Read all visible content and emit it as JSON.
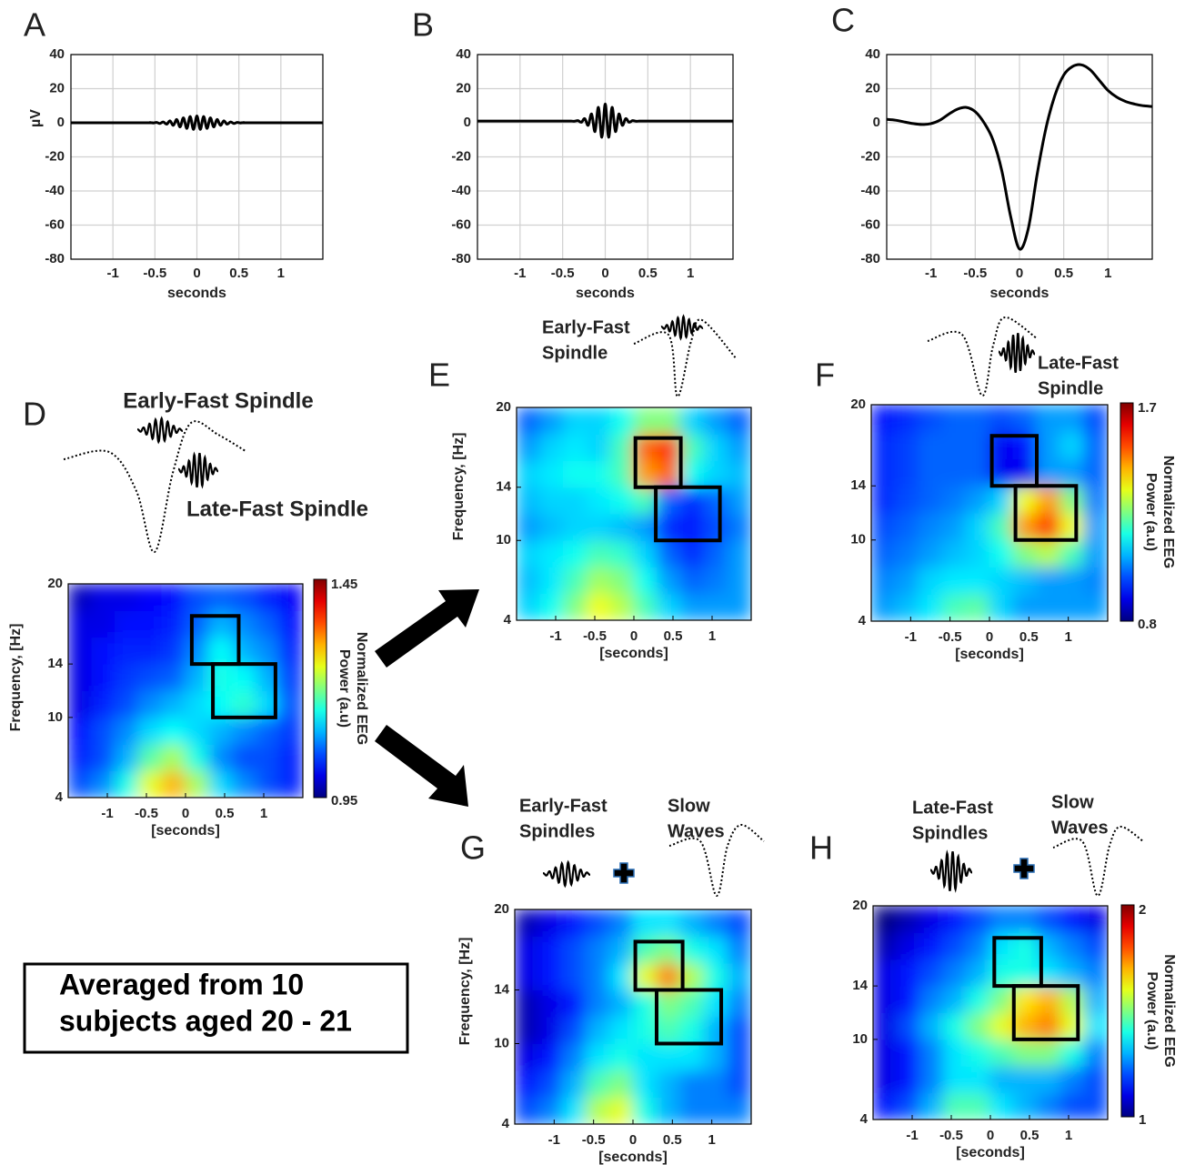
{
  "caption": [
    "Averaged from 10",
    "subjects aged 20 - 21"
  ],
  "chart_data": [
    {
      "type": "line",
      "label": "A",
      "ylabel": "µV",
      "xlabel": "seconds",
      "color": "#000000",
      "x": [
        -1.5,
        -0.6,
        -0.56,
        -0.52,
        -0.48,
        -0.44,
        -0.4,
        -0.36,
        -0.32,
        -0.28,
        -0.24,
        -0.2,
        -0.16,
        -0.12,
        -0.08,
        -0.04,
        0,
        0.04,
        0.08,
        0.12,
        0.16,
        0.2,
        0.24,
        0.28,
        0.32,
        0.36,
        0.4,
        0.44,
        0.48,
        0.52,
        0.56,
        0.6,
        1.5
      ],
      "values": [
        0,
        0,
        0.1,
        -0.1,
        0.2,
        -0.4,
        0.5,
        -0.8,
        1.1,
        -1.5,
        1.9,
        -2.4,
        2.9,
        -3.3,
        3.7,
        -3.9,
        4,
        -3.9,
        3.7,
        -3.3,
        2.9,
        -2.4,
        1.9,
        -1.5,
        1.1,
        -0.8,
        0.5,
        -0.4,
        0.2,
        -0.1,
        0.1,
        0,
        0
      ],
      "xlim": [
        -1.5,
        1.5
      ],
      "ylim": [
        -80,
        40
      ],
      "xticks": [
        -1,
        -0.5,
        0,
        0.5,
        1
      ],
      "yticks": [
        -80,
        -60,
        -40,
        -20,
        0,
        20,
        40
      ],
      "grid": true
    },
    {
      "type": "line",
      "label": "B",
      "xlabel": "seconds",
      "color": "#000000",
      "x": [
        -1.5,
        -0.6,
        -0.56,
        -0.52,
        -0.48,
        -0.44,
        -0.4,
        -0.36,
        -0.32,
        -0.28,
        -0.24,
        -0.2,
        -0.16,
        -0.12,
        -0.08,
        -0.04,
        0,
        0.04,
        0.08,
        0.12,
        0.16,
        0.2,
        0.24,
        0.28,
        0.32,
        0.36,
        0.4,
        0.44,
        0.48,
        0.52,
        0.56,
        0.6,
        1.5
      ],
      "values": [
        1,
        1,
        1,
        1,
        1,
        1,
        1,
        0.9,
        1.3,
        0.3,
        2.4,
        -1.5,
        5.1,
        -5.1,
        9,
        -8.5,
        11,
        -8.5,
        9,
        -5.1,
        5.1,
        -1.5,
        2.4,
        0.3,
        1.3,
        0.9,
        1,
        1,
        1,
        1,
        1,
        1,
        1
      ],
      "xlim": [
        -1.5,
        1.5
      ],
      "ylim": [
        -80,
        40
      ],
      "xticks": [
        -1,
        -0.5,
        0,
        0.5,
        1
      ],
      "yticks": [
        -80,
        -60,
        -40,
        -20,
        0,
        20,
        40
      ],
      "grid": true
    },
    {
      "type": "line",
      "label": "C",
      "xlabel": "seconds",
      "color": "#000000",
      "x": [
        -1.5,
        -1.4,
        -1.3,
        -1.2,
        -1.1,
        -1.0,
        -0.9,
        -0.8,
        -0.7,
        -0.6,
        -0.5,
        -0.4,
        -0.3,
        -0.2,
        -0.1,
        0,
        0.1,
        0.2,
        0.3,
        0.4,
        0.5,
        0.6,
        0.7,
        0.8,
        0.9,
        1.0,
        1.1,
        1.2,
        1.3,
        1.4,
        1.5
      ],
      "values": [
        2,
        1.5,
        0.5,
        -0.5,
        -1,
        -0.5,
        1.5,
        5,
        8,
        9,
        6.5,
        0,
        -10,
        -28,
        -55,
        -74,
        -62,
        -30,
        -3,
        16,
        28,
        33,
        34,
        31,
        25,
        19,
        15,
        12.5,
        11,
        10,
        9.5
      ],
      "xlim": [
        -1.5,
        1.5
      ],
      "ylim": [
        -80,
        40
      ],
      "xticks": [
        -1,
        -0.5,
        0,
        0.5,
        1
      ],
      "yticks": [
        -80,
        -60,
        -40,
        -20,
        0,
        20,
        40
      ],
      "grid": true
    },
    {
      "type": "heatmap",
      "label": "D",
      "ylabel": "Frequency, [Hz]",
      "xlabel": "[seconds]",
      "annotations": [
        [
          "Early-Fast Spindle"
        ],
        [
          "Late-Fast Spindle"
        ]
      ],
      "colorbar_label": [
        "Normalized EEG",
        "Power (a.u)"
      ],
      "clim": [
        0.95,
        1.45
      ],
      "cticks": [
        0.95,
        1.45
      ],
      "xlim": [
        -1.5,
        1.5
      ],
      "ylim": [
        4,
        20
      ],
      "xticks": [
        -1,
        -0.5,
        0,
        0.5,
        1
      ],
      "yticks": [
        4,
        10,
        14,
        20
      ],
      "x": [
        -1.35,
        -1.05,
        -0.75,
        -0.45,
        -0.15,
        0.15,
        0.45,
        0.75,
        1.05,
        1.35
      ],
      "y": [
        5,
        7,
        9,
        11,
        13,
        15,
        17,
        19
      ],
      "z": [
        [
          1.05,
          1.08,
          1.15,
          1.25,
          1.3,
          1.22,
          1.12,
          1.08,
          1.05,
          1.03
        ],
        [
          1.03,
          1.05,
          1.1,
          1.18,
          1.22,
          1.15,
          1.08,
          1.05,
          1.05,
          1.03
        ],
        [
          1.02,
          1.05,
          1.08,
          1.12,
          1.14,
          1.12,
          1.1,
          1.08,
          1.06,
          1.04
        ],
        [
          1.0,
          1.03,
          1.05,
          1.08,
          1.1,
          1.12,
          1.14,
          1.16,
          1.12,
          1.05
        ],
        [
          1.0,
          1.02,
          1.04,
          1.05,
          1.06,
          1.1,
          1.15,
          1.14,
          1.1,
          1.04
        ],
        [
          1.0,
          1.02,
          1.03,
          1.03,
          1.04,
          1.08,
          1.14,
          1.1,
          1.08,
          1.03
        ],
        [
          1.0,
          1.0,
          1.02,
          1.02,
          1.03,
          1.06,
          1.1,
          1.08,
          1.06,
          1.02
        ],
        [
          0.98,
          1.0,
          1.0,
          1.01,
          1.02,
          1.05,
          1.06,
          1.05,
          1.03,
          1.01
        ]
      ],
      "boxes": [
        {
          "x": [
            0.08,
            0.68
          ],
          "y": [
            14,
            17.6
          ]
        },
        {
          "x": [
            0.35,
            1.15
          ],
          "y": [
            10,
            14
          ]
        }
      ]
    },
    {
      "type": "heatmap",
      "label": "E",
      "ylabel": "Frequency, [Hz]",
      "xlabel": "[seconds]",
      "annotations": [
        [
          "Early-Fast",
          "Spindle"
        ]
      ],
      "clim": [
        0.8,
        1.7
      ],
      "xlim": [
        -1.5,
        1.5
      ],
      "ylim": [
        4,
        20
      ],
      "xticks": [
        -1,
        -0.5,
        0,
        0.5,
        1
      ],
      "yticks": [
        4,
        10,
        14,
        20
      ],
      "x": [
        -1.35,
        -1.05,
        -0.75,
        -0.45,
        -0.15,
        0.15,
        0.45,
        0.75,
        1.05,
        1.35
      ],
      "y": [
        5,
        7,
        9,
        11,
        13,
        15,
        17,
        19
      ],
      "z": [
        [
          1.1,
          1.15,
          1.25,
          1.35,
          1.3,
          1.2,
          1.1,
          1.05,
          1.05,
          1.05
        ],
        [
          1.08,
          1.12,
          1.2,
          1.28,
          1.25,
          1.15,
          1.05,
          1.0,
          1.02,
          1.05
        ],
        [
          1.1,
          1.12,
          1.15,
          1.2,
          1.18,
          1.1,
          1.0,
          0.95,
          1.0,
          1.05
        ],
        [
          1.05,
          1.08,
          1.1,
          1.1,
          1.08,
          1.05,
          0.95,
          0.93,
          0.98,
          1.02
        ],
        [
          1.08,
          1.1,
          1.1,
          1.12,
          1.15,
          1.2,
          1.0,
          0.95,
          1.0,
          1.05
        ],
        [
          1.1,
          1.12,
          1.15,
          1.15,
          1.2,
          1.45,
          1.5,
          1.15,
          1.1,
          1.08
        ],
        [
          1.05,
          1.1,
          1.12,
          1.1,
          1.2,
          1.5,
          1.55,
          1.2,
          1.1,
          1.05
        ],
        [
          1.0,
          1.05,
          1.1,
          1.1,
          1.15,
          1.25,
          1.25,
          1.1,
          1.05,
          1.0
        ]
      ],
      "boxes": [
        {
          "x": [
            0.02,
            0.6
          ],
          "y": [
            14,
            17.7
          ]
        },
        {
          "x": [
            0.28,
            1.1
          ],
          "y": [
            10,
            14
          ]
        }
      ]
    },
    {
      "type": "heatmap",
      "label": "F",
      "xlabel": "[seconds]",
      "annotations": [
        [
          "Late-Fast",
          "Spindle"
        ]
      ],
      "colorbar_label": [
        "Normalized EEG",
        "Power (a.u)"
      ],
      "clim": [
        0.8,
        1.7
      ],
      "cticks": [
        0.8,
        1.7
      ],
      "xlim": [
        -1.5,
        1.5
      ],
      "ylim": [
        4,
        20
      ],
      "xticks": [
        -1,
        -0.5,
        0,
        0.5,
        1
      ],
      "yticks": [
        4,
        10,
        14,
        20
      ],
      "x": [
        -1.35,
        -1.05,
        -0.75,
        -0.45,
        -0.15,
        0.15,
        0.45,
        0.75,
        1.05,
        1.35
      ],
      "y": [
        5,
        7,
        9,
        11,
        13,
        15,
        17,
        19
      ],
      "z": [
        [
          1.05,
          1.08,
          1.12,
          1.2,
          1.22,
          1.1,
          1.05,
          1.05,
          1.05,
          1.05
        ],
        [
          1.03,
          1.05,
          1.1,
          1.12,
          1.12,
          1.1,
          1.08,
          1.05,
          1.05,
          1.03
        ],
        [
          1.0,
          1.02,
          1.05,
          1.08,
          1.1,
          1.15,
          1.25,
          1.3,
          1.2,
          1.05
        ],
        [
          0.98,
          1.0,
          1.03,
          1.05,
          1.1,
          1.2,
          1.45,
          1.55,
          1.35,
          1.05
        ],
        [
          0.95,
          0.98,
          1.0,
          1.02,
          1.05,
          1.1,
          1.35,
          1.45,
          1.25,
          1.02
        ],
        [
          0.95,
          0.97,
          1.0,
          1.0,
          1.0,
          0.9,
          0.9,
          1.05,
          1.05,
          1.0
        ],
        [
          0.95,
          0.97,
          1.0,
          1.0,
          1.0,
          0.9,
          0.92,
          1.05,
          1.1,
          1.0
        ],
        [
          0.93,
          0.95,
          0.98,
          1.0,
          1.0,
          0.98,
          1.0,
          1.05,
          1.05,
          0.98
        ]
      ],
      "boxes": [
        {
          "x": [
            0.03,
            0.6
          ],
          "y": [
            14,
            17.7
          ]
        },
        {
          "x": [
            0.33,
            1.1
          ],
          "y": [
            10,
            14
          ]
        }
      ]
    },
    {
      "type": "heatmap",
      "label": "G",
      "ylabel": "Frequency, [Hz]",
      "xlabel": "[seconds]",
      "annotations": [
        [
          "Early-Fast",
          "Spindles"
        ],
        [
          "Slow",
          "Waves"
        ]
      ],
      "clim": [
        1,
        2
      ],
      "xlim": [
        -1.5,
        1.5
      ],
      "ylim": [
        4,
        20
      ],
      "xticks": [
        -1,
        -0.5,
        0,
        0.5,
        1
      ],
      "yticks": [
        4,
        10,
        14,
        20
      ],
      "x": [
        -1.35,
        -1.05,
        -0.75,
        -0.45,
        -0.15,
        0.15,
        0.45,
        0.75,
        1.05,
        1.35
      ],
      "y": [
        5,
        7,
        9,
        11,
        13,
        15,
        17,
        19
      ],
      "z": [
        [
          1.2,
          1.25,
          1.35,
          1.55,
          1.6,
          1.4,
          1.3,
          1.25,
          1.25,
          1.25
        ],
        [
          1.15,
          1.2,
          1.3,
          1.45,
          1.5,
          1.35,
          1.3,
          1.25,
          1.25,
          1.2
        ],
        [
          1.1,
          1.15,
          1.25,
          1.35,
          1.4,
          1.35,
          1.35,
          1.35,
          1.3,
          1.2
        ],
        [
          1.05,
          1.1,
          1.2,
          1.3,
          1.35,
          1.4,
          1.45,
          1.4,
          1.3,
          1.2
        ],
        [
          1.05,
          1.1,
          1.15,
          1.25,
          1.3,
          1.4,
          1.5,
          1.45,
          1.35,
          1.25
        ],
        [
          1.1,
          1.15,
          1.2,
          1.25,
          1.35,
          1.6,
          1.75,
          1.55,
          1.4,
          1.3
        ],
        [
          1.1,
          1.15,
          1.2,
          1.25,
          1.3,
          1.45,
          1.5,
          1.4,
          1.35,
          1.25
        ],
        [
          1.05,
          1.1,
          1.15,
          1.2,
          1.25,
          1.35,
          1.35,
          1.3,
          1.25,
          1.2
        ]
      ],
      "boxes": [
        {
          "x": [
            0.03,
            0.63
          ],
          "y": [
            14,
            17.6
          ]
        },
        {
          "x": [
            0.3,
            1.12
          ],
          "y": [
            10,
            14
          ]
        }
      ]
    },
    {
      "type": "heatmap",
      "label": "H",
      "xlabel": "[seconds]",
      "annotations": [
        [
          "Late-Fast",
          "Spindles"
        ],
        [
          "Slow",
          "Waves"
        ]
      ],
      "colorbar_label": [
        "Normalized EEG",
        "Power (a.u)"
      ],
      "clim": [
        1,
        2
      ],
      "cticks": [
        1,
        2
      ],
      "xlim": [
        -1.5,
        1.5
      ],
      "ylim": [
        4,
        20
      ],
      "xticks": [
        -1,
        -0.5,
        0,
        0.5,
        1
      ],
      "yticks": [
        4,
        10,
        14,
        20
      ],
      "x": [
        -1.35,
        -1.05,
        -0.75,
        -0.45,
        -0.15,
        0.15,
        0.45,
        0.75,
        1.05,
        1.35
      ],
      "y": [
        5,
        7,
        9,
        11,
        13,
        15,
        17,
        19
      ],
      "z": [
        [
          1.15,
          1.2,
          1.3,
          1.45,
          1.45,
          1.35,
          1.3,
          1.25,
          1.2,
          1.2
        ],
        [
          1.1,
          1.15,
          1.25,
          1.35,
          1.35,
          1.3,
          1.3,
          1.3,
          1.25,
          1.2
        ],
        [
          1.1,
          1.15,
          1.25,
          1.35,
          1.4,
          1.45,
          1.5,
          1.5,
          1.4,
          1.25
        ],
        [
          1.1,
          1.2,
          1.3,
          1.4,
          1.5,
          1.6,
          1.7,
          1.75,
          1.6,
          1.35
        ],
        [
          1.1,
          1.15,
          1.25,
          1.3,
          1.4,
          1.5,
          1.65,
          1.7,
          1.55,
          1.3
        ],
        [
          1.1,
          1.15,
          1.2,
          1.25,
          1.3,
          1.4,
          1.4,
          1.35,
          1.3,
          1.25
        ],
        [
          1.05,
          1.1,
          1.15,
          1.2,
          1.25,
          1.35,
          1.4,
          1.3,
          1.25,
          1.2
        ],
        [
          1.0,
          1.05,
          1.1,
          1.15,
          1.2,
          1.25,
          1.25,
          1.2,
          1.15,
          1.1
        ]
      ],
      "boxes": [
        {
          "x": [
            0.05,
            0.65
          ],
          "y": [
            14,
            17.6
          ]
        },
        {
          "x": [
            0.3,
            1.12
          ],
          "y": [
            10,
            14
          ]
        }
      ]
    }
  ]
}
